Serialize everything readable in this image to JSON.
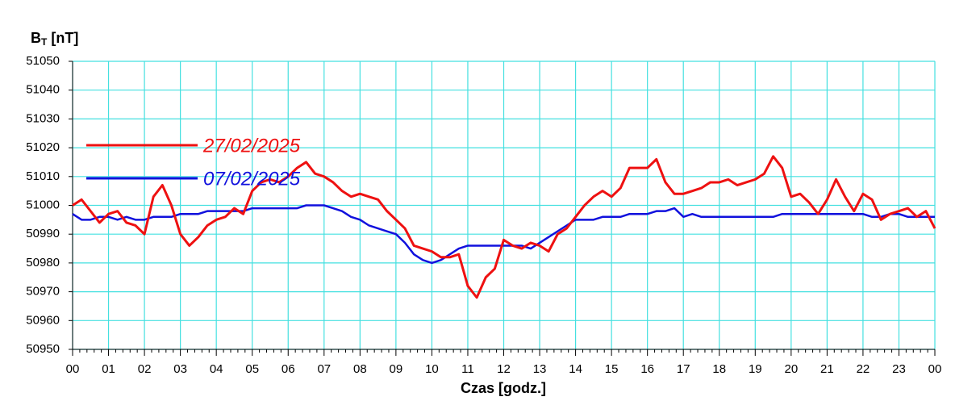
{
  "chart_data": {
    "type": "line",
    "ylabel_base": "B",
    "ylabel_sub": "T",
    "ylabel_unit": "[nT]",
    "xlabel": "Czas [godz.]",
    "x": [
      0,
      0.25,
      0.5,
      0.75,
      1,
      1.25,
      1.5,
      1.75,
      2,
      2.25,
      2.5,
      2.75,
      3,
      3.25,
      3.5,
      3.75,
      4,
      4.25,
      4.5,
      4.75,
      5,
      5.25,
      5.5,
      5.75,
      6,
      6.25,
      6.5,
      6.75,
      7,
      7.25,
      7.5,
      7.75,
      8,
      8.25,
      8.5,
      8.75,
      9,
      9.25,
      9.5,
      9.75,
      10,
      10.25,
      10.5,
      10.75,
      11,
      11.25,
      11.5,
      11.75,
      12,
      12.25,
      12.5,
      12.75,
      13,
      13.25,
      13.5,
      13.75,
      14,
      14.25,
      14.5,
      14.75,
      15,
      15.25,
      15.5,
      15.75,
      16,
      16.25,
      16.5,
      16.75,
      17,
      17.25,
      17.5,
      17.75,
      18,
      18.25,
      18.5,
      18.75,
      19,
      19.25,
      19.5,
      19.75,
      20,
      20.25,
      20.5,
      20.75,
      21,
      21.25,
      21.5,
      21.75,
      22,
      22.25,
      22.5,
      22.75,
      23,
      23.25,
      23.5,
      23.75,
      24
    ],
    "series": [
      {
        "name": "27/02/2025",
        "color": "#ee1111",
        "values": [
          51000,
          51002,
          50998,
          50994,
          50997,
          50998,
          50994,
          50993,
          50990,
          51003,
          51007,
          51000,
          50990,
          50986,
          50989,
          50993,
          50995,
          50996,
          50999,
          50997,
          51005,
          51008,
          51009,
          51008,
          51010,
          51013,
          51015,
          51011,
          51010,
          51008,
          51005,
          51003,
          51004,
          51003,
          51002,
          50998,
          50995,
          50992,
          50986,
          50985,
          50984,
          50982,
          50982,
          50983,
          50972,
          50968,
          50975,
          50978,
          50988,
          50986,
          50985,
          50987,
          50986,
          50984,
          50990,
          50992,
          50996,
          51000,
          51003,
          51005,
          51003,
          51006,
          51013,
          51013,
          51013,
          51016,
          51008,
          51004,
          51004,
          51005,
          51006,
          51008,
          51008,
          51009,
          51007,
          51008,
          51009,
          51011,
          51017,
          51013,
          51003,
          51004,
          51001,
          50997,
          51002,
          51009,
          51003,
          50998,
          51004,
          51002,
          50995,
          50997,
          50998,
          50999,
          50996,
          50998,
          50992
        ]
      },
      {
        "name": "07/02/2025",
        "color": "#1111dd",
        "values": [
          50997,
          50995,
          50995,
          50996,
          50996,
          50995,
          50996,
          50995,
          50995,
          50996,
          50996,
          50996,
          50997,
          50997,
          50997,
          50998,
          50998,
          50998,
          50998,
          50998,
          50999,
          50999,
          50999,
          50999,
          50999,
          50999,
          51000,
          51000,
          51000,
          50999,
          50998,
          50996,
          50995,
          50993,
          50992,
          50991,
          50990,
          50987,
          50983,
          50981,
          50980,
          50981,
          50983,
          50985,
          50986,
          50986,
          50986,
          50986,
          50986,
          50986,
          50986,
          50985,
          50987,
          50989,
          50991,
          50993,
          50995,
          50995,
          50995,
          50996,
          50996,
          50996,
          50997,
          50997,
          50997,
          50998,
          50998,
          50999,
          50996,
          50997,
          50996,
          50996,
          50996,
          50996,
          50996,
          50996,
          50996,
          50996,
          50996,
          50997,
          50997,
          50997,
          50997,
          50997,
          50997,
          50997,
          50997,
          50997,
          50997,
          50996,
          50996,
          50997,
          50997,
          50996,
          50996,
          50996,
          50996
        ]
      }
    ],
    "xlim": [
      0,
      24
    ],
    "ylim": [
      50950,
      51050
    ],
    "xticks": [
      {
        "value": 0,
        "label": "00"
      },
      {
        "value": 1,
        "label": "01"
      },
      {
        "value": 2,
        "label": "02"
      },
      {
        "value": 3,
        "label": "03"
      },
      {
        "value": 4,
        "label": "04"
      },
      {
        "value": 5,
        "label": "05"
      },
      {
        "value": 6,
        "label": "06"
      },
      {
        "value": 7,
        "label": "07"
      },
      {
        "value": 8,
        "label": "08"
      },
      {
        "value": 9,
        "label": "09"
      },
      {
        "value": 10,
        "label": "10"
      },
      {
        "value": 11,
        "label": "11"
      },
      {
        "value": 12,
        "label": "12"
      },
      {
        "value": 13,
        "label": "13"
      },
      {
        "value": 14,
        "label": "14"
      },
      {
        "value": 15,
        "label": "15"
      },
      {
        "value": 16,
        "label": "16"
      },
      {
        "value": 17,
        "label": "17"
      },
      {
        "value": 18,
        "label": "18"
      },
      {
        "value": 19,
        "label": "19"
      },
      {
        "value": 20,
        "label": "20"
      },
      {
        "value": 21,
        "label": "21"
      },
      {
        "value": 22,
        "label": "22"
      },
      {
        "value": 23,
        "label": "23"
      },
      {
        "value": 24,
        "label": "00"
      }
    ],
    "yticks": [
      50950,
      50960,
      50970,
      50980,
      50990,
      51000,
      51010,
      51020,
      51030,
      51040,
      51050
    ],
    "grid": true,
    "grid_color": "#44e0e0",
    "legend": "upper left"
  }
}
